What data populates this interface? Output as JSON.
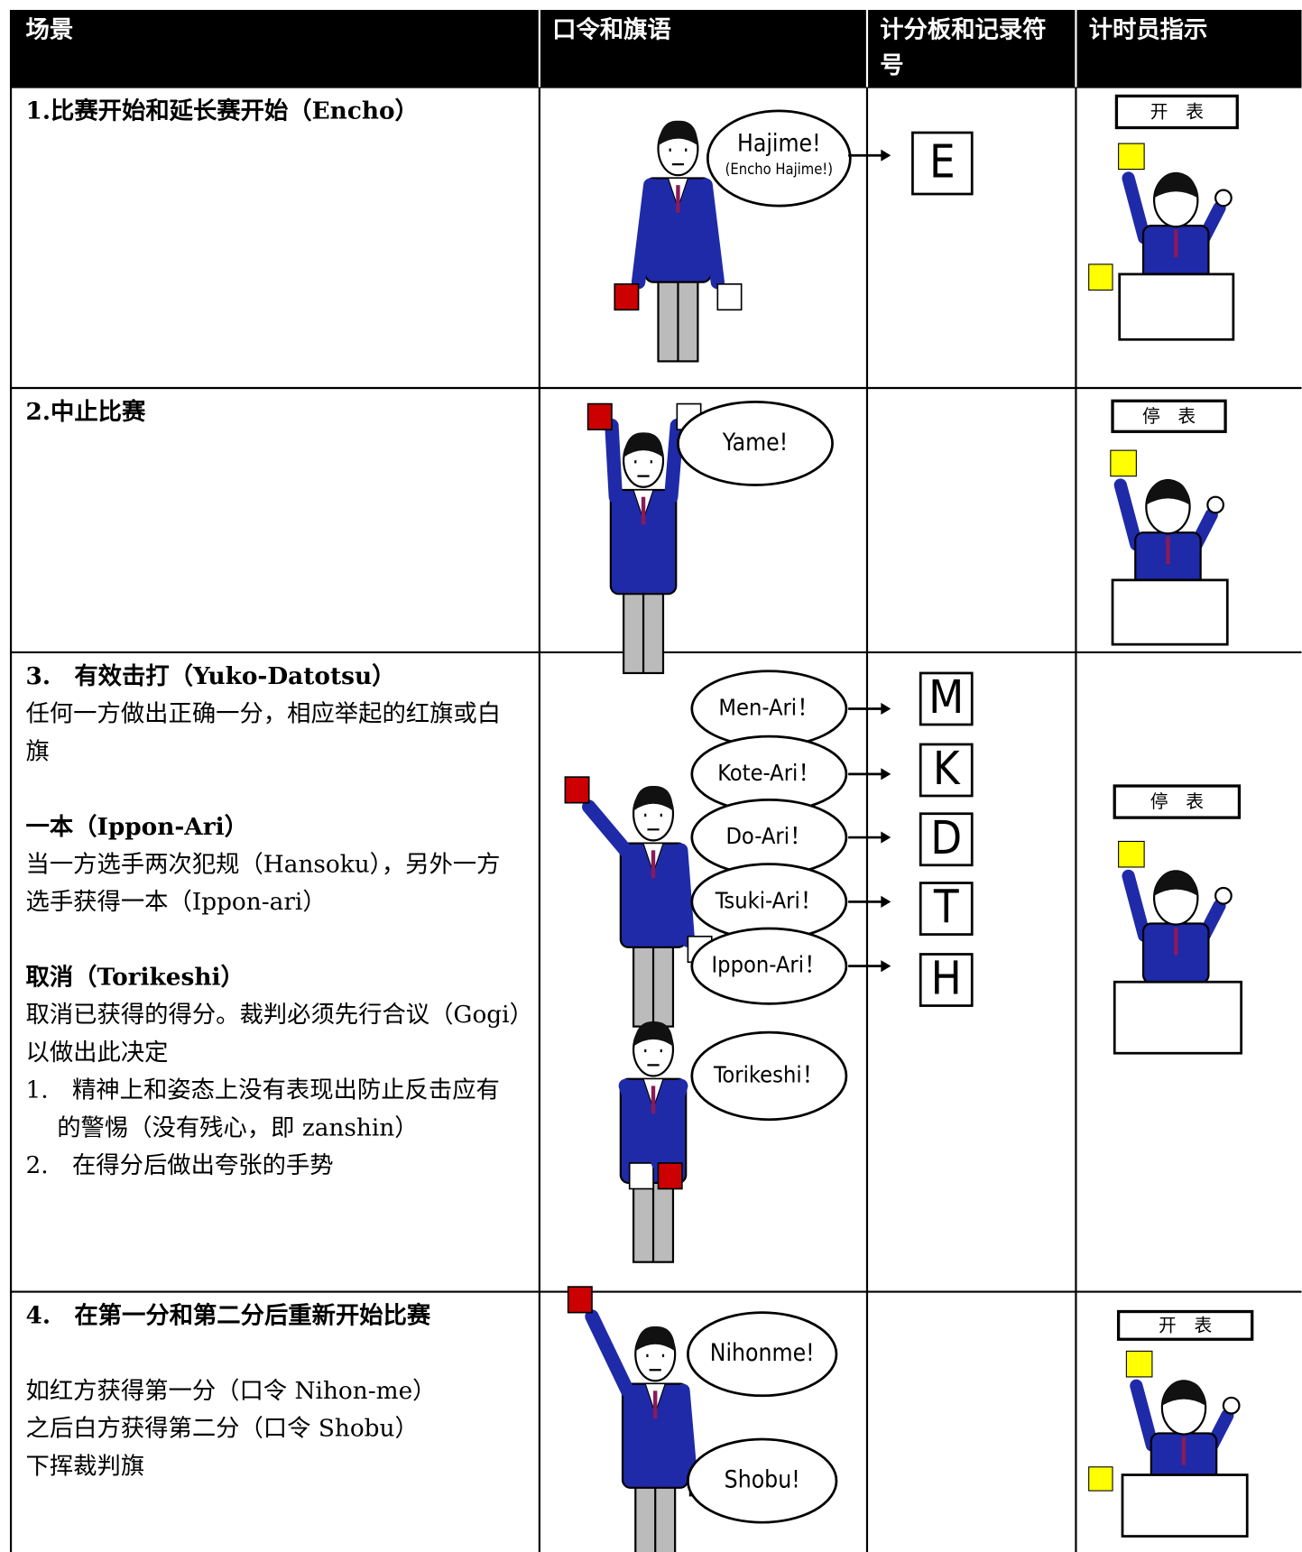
{
  "table": {
    "headers": [
      "场景",
      "口令和旗语",
      "计分板和记录符号",
      "计时员指示"
    ],
    "rows": [
      {
        "scene": [
          "1.比赛开始和延长赛开始（Encho）"
        ],
        "calls": [
          "Hajime!",
          "(Encho Hajime!)"
        ],
        "symbols": [
          "E"
        ],
        "timer": "开　表"
      },
      {
        "scene": [
          "2.中止比赛"
        ],
        "calls": [
          "Yame!"
        ],
        "timer": "停　表"
      },
      {
        "scene": [
          "3.　有效击打（Yuko-Datotsu）",
          "任何一方做出正确一分，相应举起的红旗或白",
          "旗",
          "一本（Ippon-Ari）",
          "当一方选手两次犯规（Hansoku），另外一方",
          "选手获得一本（Ippon-ari）",
          "取消（Torikeshi）",
          "取消已获得的得分。裁判必须先行合议（Gogi）",
          "以做出此决定",
          "1.　精神上和姿态上没有表现出防止反击应有",
          "　 的警惕（没有残心，即 zanshin）",
          "2.　在得分后做出夸张的手势"
        ],
        "calls": [
          "Men-Ari！",
          "Kote-Ari！",
          "Do-Ari！",
          "Tsuki-Ari！",
          "Ippon-Ari！",
          "Torikeshi！"
        ],
        "symbols": [
          "M",
          "K",
          "D",
          "T",
          "H"
        ],
        "timer": "停　表"
      },
      {
        "scene": [
          "4.　在第一分和第二分后重新开始比赛",
          "如红方获得第一分（口令 Nihon-me）",
          "之后白方获得第二分（口令 Shobu）",
          "下挥裁判旗"
        ],
        "calls": [
          "Nihonme!",
          "Shobu!"
        ],
        "timer": "开　表"
      }
    ]
  }
}
